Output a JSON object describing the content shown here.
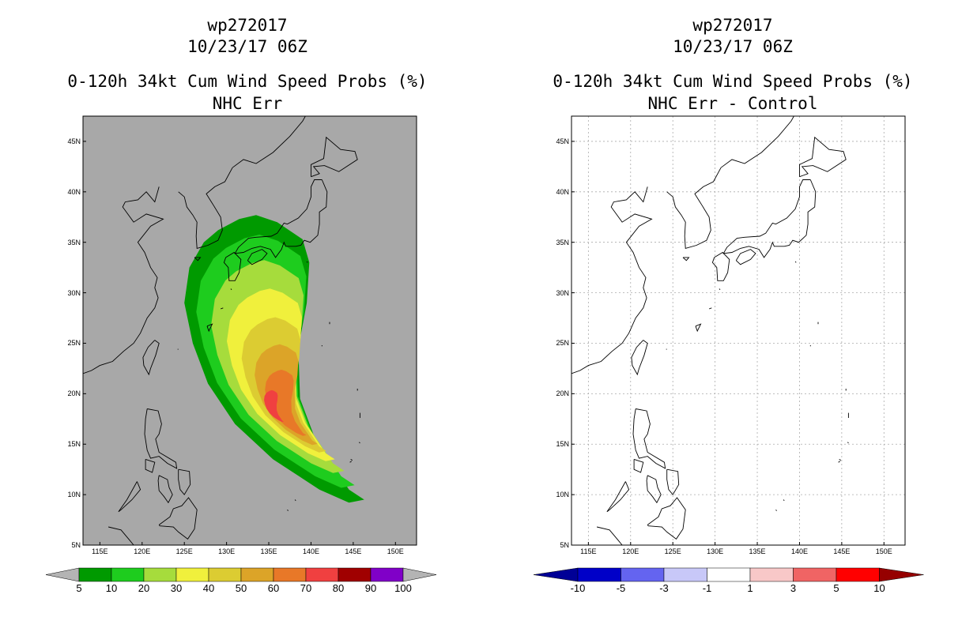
{
  "left_panel": {
    "title_line1": "wp272017",
    "title_line2": "10/23/17 06Z",
    "title_line3": "0-120h 34kt Cum Wind Speed Probs (%)",
    "title_line4": "NHC Err",
    "background_color": "#a8a8a8",
    "colorbar": {
      "labels": [
        "5",
        "10",
        "20",
        "30",
        "40",
        "50",
        "60",
        "70",
        "80",
        "90",
        "100"
      ],
      "colors": [
        "#009a00",
        "#1ecc1e",
        "#a6dc3c",
        "#f0f03c",
        "#dccc32",
        "#dca428",
        "#e87828",
        "#f04040",
        "#a00000",
        "#8000c8"
      ],
      "end_color": "#b4b4b4"
    }
  },
  "right_panel": {
    "title_line1": "wp272017",
    "title_line2": "10/23/17 06Z",
    "title_line3": "0-120h 34kt Cum Wind Speed Probs (%)",
    "title_line4": "NHC Err - Control",
    "background_color": "#ffffff",
    "colorbar": {
      "labels": [
        "-10",
        "-5",
        "-3",
        "-1",
        "1",
        "3",
        "5",
        "10"
      ],
      "colors": [
        "#0000c8",
        "#6464f0",
        "#c8c8f8",
        "#ffffff",
        "#f8c8c8",
        "#f06464",
        "#ff0000"
      ],
      "low_end_color": "#000096",
      "high_end_color": "#960000"
    }
  },
  "axes": {
    "lon_labels": [
      "115E",
      "120E",
      "125E",
      "130E",
      "135E",
      "140E",
      "145E",
      "150E"
    ],
    "lat_labels": [
      "45N",
      "40N",
      "35N",
      "30N",
      "25N",
      "20N",
      "15N",
      "10N",
      "5N"
    ],
    "lon_values": [
      115,
      120,
      125,
      130,
      135,
      140,
      145,
      150
    ],
    "lat_values": [
      45,
      40,
      35,
      30,
      25,
      20,
      15,
      10,
      5
    ],
    "lon_range": [
      113,
      152.5
    ],
    "lat_range": [
      5,
      47.5
    ]
  },
  "track_polygon_lonlat": [
    [
      144.5,
      10.5
    ],
    [
      146.3,
      9.5
    ],
    [
      144.5,
      9.2
    ],
    [
      141,
      10.5
    ],
    [
      135.5,
      13.5
    ],
    [
      131,
      17
    ],
    [
      127.8,
      21
    ],
    [
      126,
      25
    ],
    [
      125,
      29
    ],
    [
      125.6,
      32.5
    ],
    [
      127.3,
      35
    ],
    [
      129,
      36.2
    ],
    [
      131.5,
      37.3
    ],
    [
      133.5,
      37.7
    ],
    [
      136,
      37
    ],
    [
      139,
      35.3
    ],
    [
      139.8,
      33
    ],
    [
      139.5,
      29
    ],
    [
      138.5,
      24.5
    ],
    [
      138.7,
      19.5
    ],
    [
      140.5,
      15.5
    ],
    [
      142.5,
      13
    ]
  ]
}
